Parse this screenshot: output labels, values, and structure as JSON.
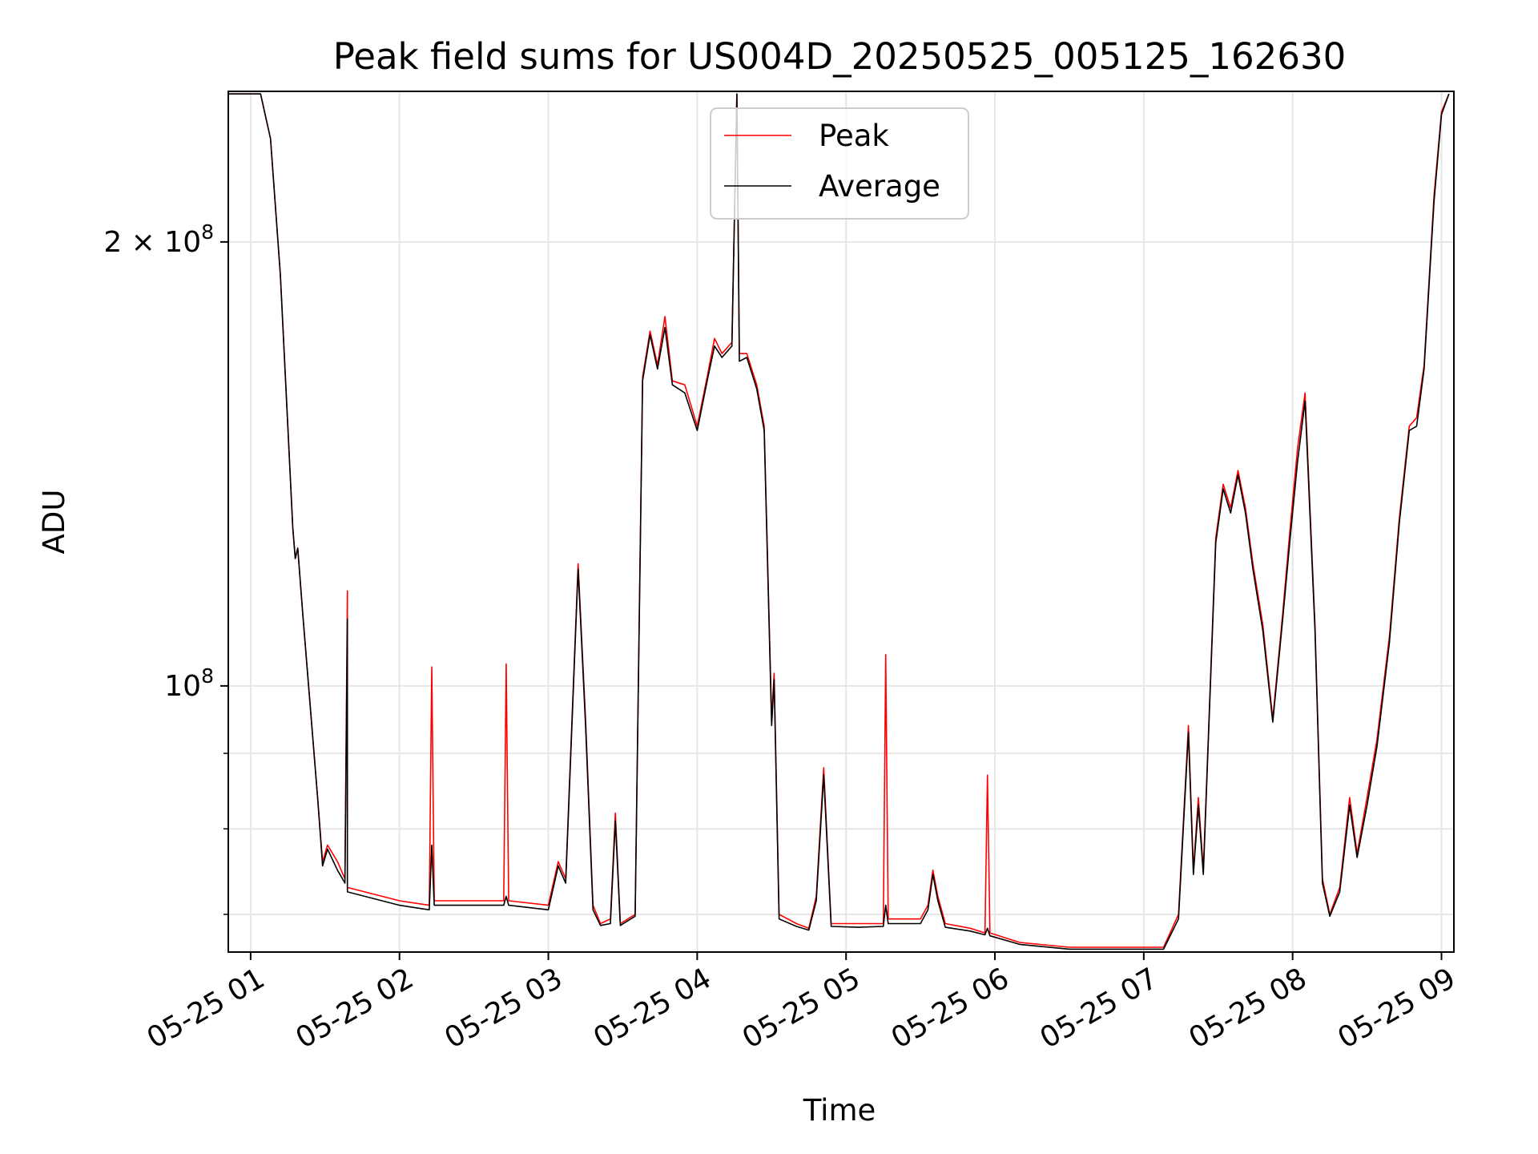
{
  "chart_data": {
    "type": "line",
    "title": "Peak field sums for US004D_20250525_005125_162630",
    "xlabel": "Time",
    "ylabel": "ADU",
    "y_scale": "log",
    "grid": true,
    "legend_position": "upper center",
    "x_range": [
      "2025-05-25 00:51",
      "2025-05-25 09:05"
    ],
    "y_range": [
      66000000,
      253000000
    ],
    "x_ticks": [
      "05-25 01",
      "05-25 02",
      "05-25 03",
      "05-25 04",
      "05-25 05",
      "05-25 06",
      "05-25 07",
      "05-25 08",
      "05-25 09"
    ],
    "y_major_ticks": [
      {
        "value": 100000000,
        "base": "10",
        "exp": "8"
      },
      {
        "value": 200000000,
        "base": "2 × 10",
        "exp": "8"
      }
    ],
    "y_minor_ticks": [
      70000000,
      80000000,
      90000000
    ],
    "series": [
      {
        "name": "Peak",
        "color": "#ff0000",
        "points": [
          [
            "2025-05-25 00:51",
            252000000
          ],
          [
            "2025-05-25 01:04",
            252000000
          ],
          [
            "2025-05-25 01:08",
            235000000
          ],
          [
            "2025-05-25 01:12",
            190000000
          ],
          [
            "2025-05-25 01:15",
            150000000
          ],
          [
            "2025-05-25 01:17",
            128000000
          ],
          [
            "2025-05-25 01:18",
            122000000
          ],
          [
            "2025-05-25 01:19",
            124000000
          ],
          [
            "2025-05-25 01:21",
            112000000
          ],
          [
            "2025-05-25 01:24",
            97000000
          ],
          [
            "2025-05-25 01:27",
            84000000
          ],
          [
            "2025-05-25 01:29",
            76000000
          ],
          [
            "2025-05-25 01:31",
            78000000
          ],
          [
            "2025-05-25 01:35",
            76000000
          ],
          [
            "2025-05-25 01:38",
            74000000
          ],
          [
            "2025-05-25 01:39",
            116000000
          ],
          [
            "2025-05-25 01:39",
            73000000
          ],
          [
            "2025-05-25 02:00",
            71500000
          ],
          [
            "2025-05-25 02:12",
            71000000
          ],
          [
            "2025-05-25 02:13",
            103000000
          ],
          [
            "2025-05-25 02:14",
            71500000
          ],
          [
            "2025-05-25 02:42",
            71500000
          ],
          [
            "2025-05-25 02:43",
            103500000
          ],
          [
            "2025-05-25 02:44",
            71500000
          ],
          [
            "2025-05-25 03:00",
            71000000
          ],
          [
            "2025-05-25 03:04",
            76000000
          ],
          [
            "2025-05-25 03:07",
            74000000
          ],
          [
            "2025-05-25 03:12",
            121000000
          ],
          [
            "2025-05-25 03:15",
            95000000
          ],
          [
            "2025-05-25 03:18",
            71000000
          ],
          [
            "2025-05-25 03:21",
            69000000
          ],
          [
            "2025-05-25 03:25",
            69500000
          ],
          [
            "2025-05-25 03:27",
            82000000
          ],
          [
            "2025-05-25 03:29",
            69000000
          ],
          [
            "2025-05-25 03:35",
            70000000
          ],
          [
            "2025-05-25 03:38",
            162000000
          ],
          [
            "2025-05-25 03:41",
            174000000
          ],
          [
            "2025-05-25 03:44",
            165000000
          ],
          [
            "2025-05-25 03:47",
            178000000
          ],
          [
            "2025-05-25 03:50",
            161000000
          ],
          [
            "2025-05-25 03:55",
            160000000
          ],
          [
            "2025-05-25 04:00",
            150000000
          ],
          [
            "2025-05-25 04:04",
            162000000
          ],
          [
            "2025-05-25 04:07",
            172000000
          ],
          [
            "2025-05-25 04:10",
            168000000
          ],
          [
            "2025-05-25 04:14",
            171000000
          ],
          [
            "2025-05-25 04:16",
            252000000
          ],
          [
            "2025-05-25 04:17",
            168000000
          ],
          [
            "2025-05-25 04:20",
            168000000
          ],
          [
            "2025-05-25 04:24",
            160000000
          ],
          [
            "2025-05-25 04:27",
            150000000
          ],
          [
            "2025-05-25 04:30",
            95000000
          ],
          [
            "2025-05-25 04:31",
            102000000
          ],
          [
            "2025-05-25 04:33",
            70000000
          ],
          [
            "2025-05-25 04:40",
            69000000
          ],
          [
            "2025-05-25 04:45",
            68500000
          ],
          [
            "2025-05-25 04:48",
            72000000
          ],
          [
            "2025-05-25 04:51",
            88000000
          ],
          [
            "2025-05-25 04:54",
            69000000
          ],
          [
            "2025-05-25 05:05",
            69000000
          ],
          [
            "2025-05-25 05:15",
            69000000
          ],
          [
            "2025-05-25 05:16",
            105000000
          ],
          [
            "2025-05-25 05:17",
            69500000
          ],
          [
            "2025-05-25 05:30",
            69500000
          ],
          [
            "2025-05-25 05:33",
            71000000
          ],
          [
            "2025-05-25 05:35",
            75000000
          ],
          [
            "2025-05-25 05:37",
            72000000
          ],
          [
            "2025-05-25 05:40",
            69000000
          ],
          [
            "2025-05-25 05:50",
            68500000
          ],
          [
            "2025-05-25 05:56",
            68000000
          ],
          [
            "2025-05-25 05:57",
            87000000
          ],
          [
            "2025-05-25 05:58",
            68000000
          ],
          [
            "2025-05-25 06:10",
            67000000
          ],
          [
            "2025-05-25 06:30",
            66500000
          ],
          [
            "2025-05-25 06:50",
            66500000
          ],
          [
            "2025-05-25 07:08",
            66500000
          ],
          [
            "2025-05-25 07:14",
            70000000
          ],
          [
            "2025-05-25 07:18",
            94000000
          ],
          [
            "2025-05-25 07:20",
            75000000
          ],
          [
            "2025-05-25 07:22",
            84000000
          ],
          [
            "2025-05-25 07:24",
            75000000
          ],
          [
            "2025-05-25 07:29",
            126000000
          ],
          [
            "2025-05-25 07:32",
            137000000
          ],
          [
            "2025-05-25 07:35",
            132000000
          ],
          [
            "2025-05-25 07:38",
            140000000
          ],
          [
            "2025-05-25 07:41",
            132000000
          ],
          [
            "2025-05-25 07:44",
            121000000
          ],
          [
            "2025-05-25 07:48",
            110000000
          ],
          [
            "2025-05-25 07:52",
            95000000
          ],
          [
            "2025-05-25 07:56",
            112000000
          ],
          [
            "2025-05-25 07:59",
            128000000
          ],
          [
            "2025-05-25 08:02",
            145000000
          ],
          [
            "2025-05-25 08:05",
            158000000
          ],
          [
            "2025-05-25 08:09",
            110000000
          ],
          [
            "2025-05-25 08:12",
            74000000
          ],
          [
            "2025-05-25 08:15",
            70000000
          ],
          [
            "2025-05-25 08:19",
            73000000
          ],
          [
            "2025-05-25 08:23",
            84000000
          ],
          [
            "2025-05-25 08:26",
            77000000
          ],
          [
            "2025-05-25 08:30",
            84000000
          ],
          [
            "2025-05-25 08:34",
            92000000
          ],
          [
            "2025-05-25 08:39",
            108000000
          ],
          [
            "2025-05-25 08:43",
            130000000
          ],
          [
            "2025-05-25 08:47",
            150000000
          ],
          [
            "2025-05-25 08:50",
            152000000
          ],
          [
            "2025-05-25 08:53",
            165000000
          ],
          [
            "2025-05-25 08:57",
            215000000
          ],
          [
            "2025-05-25 09:00",
            245000000
          ],
          [
            "2025-05-25 09:03",
            252000000
          ]
        ]
      },
      {
        "name": "Average",
        "color": "#000000",
        "points": [
          [
            "2025-05-25 00:51",
            252000000
          ],
          [
            "2025-05-25 01:04",
            252000000
          ],
          [
            "2025-05-25 01:08",
            235000000
          ],
          [
            "2025-05-25 01:12",
            190000000
          ],
          [
            "2025-05-25 01:15",
            150000000
          ],
          [
            "2025-05-25 01:17",
            128000000
          ],
          [
            "2025-05-25 01:18",
            122000000
          ],
          [
            "2025-05-25 01:19",
            124000000
          ],
          [
            "2025-05-25 01:21",
            112000000
          ],
          [
            "2025-05-25 01:24",
            97000000
          ],
          [
            "2025-05-25 01:27",
            84000000
          ],
          [
            "2025-05-25 01:29",
            75500000
          ],
          [
            "2025-05-25 01:31",
            77500000
          ],
          [
            "2025-05-25 01:35",
            75000000
          ],
          [
            "2025-05-25 01:38",
            73500000
          ],
          [
            "2025-05-25 01:39",
            111000000
          ],
          [
            "2025-05-25 01:39",
            72500000
          ],
          [
            "2025-05-25 02:00",
            71000000
          ],
          [
            "2025-05-25 02:12",
            70500000
          ],
          [
            "2025-05-25 02:13",
            78000000
          ],
          [
            "2025-05-25 02:14",
            71000000
          ],
          [
            "2025-05-25 02:42",
            71000000
          ],
          [
            "2025-05-25 02:43",
            72000000
          ],
          [
            "2025-05-25 02:44",
            71000000
          ],
          [
            "2025-05-25 03:00",
            70500000
          ],
          [
            "2025-05-25 03:04",
            75500000
          ],
          [
            "2025-05-25 03:07",
            73500000
          ],
          [
            "2025-05-25 03:12",
            120000000
          ],
          [
            "2025-05-25 03:15",
            94000000
          ],
          [
            "2025-05-25 03:18",
            70500000
          ],
          [
            "2025-05-25 03:21",
            68800000
          ],
          [
            "2025-05-25 03:25",
            69000000
          ],
          [
            "2025-05-25 03:27",
            81000000
          ],
          [
            "2025-05-25 03:29",
            68800000
          ],
          [
            "2025-05-25 03:35",
            69800000
          ],
          [
            "2025-05-25 03:38",
            161000000
          ],
          [
            "2025-05-25 03:41",
            173000000
          ],
          [
            "2025-05-25 03:44",
            164000000
          ],
          [
            "2025-05-25 03:47",
            175000000
          ],
          [
            "2025-05-25 03:50",
            160000000
          ],
          [
            "2025-05-25 03:55",
            158000000
          ],
          [
            "2025-05-25 04:00",
            149000000
          ],
          [
            "2025-05-25 04:04",
            161000000
          ],
          [
            "2025-05-25 04:07",
            170000000
          ],
          [
            "2025-05-25 04:10",
            167000000
          ],
          [
            "2025-05-25 04:14",
            170000000
          ],
          [
            "2025-05-25 04:16",
            252000000
          ],
          [
            "2025-05-25 04:17",
            166000000
          ],
          [
            "2025-05-25 04:20",
            167000000
          ],
          [
            "2025-05-25 04:24",
            159000000
          ],
          [
            "2025-05-25 04:27",
            149000000
          ],
          [
            "2025-05-25 04:30",
            94000000
          ],
          [
            "2025-05-25 04:31",
            101000000
          ],
          [
            "2025-05-25 04:33",
            69500000
          ],
          [
            "2025-05-25 04:40",
            68700000
          ],
          [
            "2025-05-25 04:45",
            68300000
          ],
          [
            "2025-05-25 04:48",
            71500000
          ],
          [
            "2025-05-25 04:51",
            87000000
          ],
          [
            "2025-05-25 04:54",
            68700000
          ],
          [
            "2025-05-25 05:05",
            68600000
          ],
          [
            "2025-05-25 05:15",
            68700000
          ],
          [
            "2025-05-25 05:16",
            71000000
          ],
          [
            "2025-05-25 05:17",
            69000000
          ],
          [
            "2025-05-25 05:30",
            69000000
          ],
          [
            "2025-05-25 05:33",
            70500000
          ],
          [
            "2025-05-25 05:35",
            74500000
          ],
          [
            "2025-05-25 05:37",
            71500000
          ],
          [
            "2025-05-25 05:40",
            68600000
          ],
          [
            "2025-05-25 05:50",
            68200000
          ],
          [
            "2025-05-25 05:56",
            67800000
          ],
          [
            "2025-05-25 05:57",
            68500000
          ],
          [
            "2025-05-25 05:58",
            67700000
          ],
          [
            "2025-05-25 06:10",
            66800000
          ],
          [
            "2025-05-25 06:30",
            66300000
          ],
          [
            "2025-05-25 06:50",
            66300000
          ],
          [
            "2025-05-25 07:08",
            66300000
          ],
          [
            "2025-05-25 07:14",
            69500000
          ],
          [
            "2025-05-25 07:18",
            93000000
          ],
          [
            "2025-05-25 07:20",
            74500000
          ],
          [
            "2025-05-25 07:22",
            83000000
          ],
          [
            "2025-05-25 07:24",
            74500000
          ],
          [
            "2025-05-25 07:29",
            125000000
          ],
          [
            "2025-05-25 07:32",
            136000000
          ],
          [
            "2025-05-25 07:35",
            131000000
          ],
          [
            "2025-05-25 07:38",
            139000000
          ],
          [
            "2025-05-25 07:41",
            131000000
          ],
          [
            "2025-05-25 07:44",
            120000000
          ],
          [
            "2025-05-25 07:48",
            109000000
          ],
          [
            "2025-05-25 07:52",
            94500000
          ],
          [
            "2025-05-25 07:56",
            111000000
          ],
          [
            "2025-05-25 07:59",
            126000000
          ],
          [
            "2025-05-25 08:02",
            142000000
          ],
          [
            "2025-05-25 08:05",
            156000000
          ],
          [
            "2025-05-25 08:09",
            109000000
          ],
          [
            "2025-05-25 08:12",
            73500000
          ],
          [
            "2025-05-25 08:15",
            69800000
          ],
          [
            "2025-05-25 08:19",
            72500000
          ],
          [
            "2025-05-25 08:23",
            83000000
          ],
          [
            "2025-05-25 08:26",
            76500000
          ],
          [
            "2025-05-25 08:30",
            83000000
          ],
          [
            "2025-05-25 08:34",
            91000000
          ],
          [
            "2025-05-25 08:39",
            107000000
          ],
          [
            "2025-05-25 08:43",
            129000000
          ],
          [
            "2025-05-25 08:47",
            149000000
          ],
          [
            "2025-05-25 08:50",
            150000000
          ],
          [
            "2025-05-25 08:53",
            164000000
          ],
          [
            "2025-05-25 08:57",
            213000000
          ],
          [
            "2025-05-25 09:00",
            244000000
          ],
          [
            "2025-05-25 09:03",
            252000000
          ]
        ]
      }
    ]
  }
}
